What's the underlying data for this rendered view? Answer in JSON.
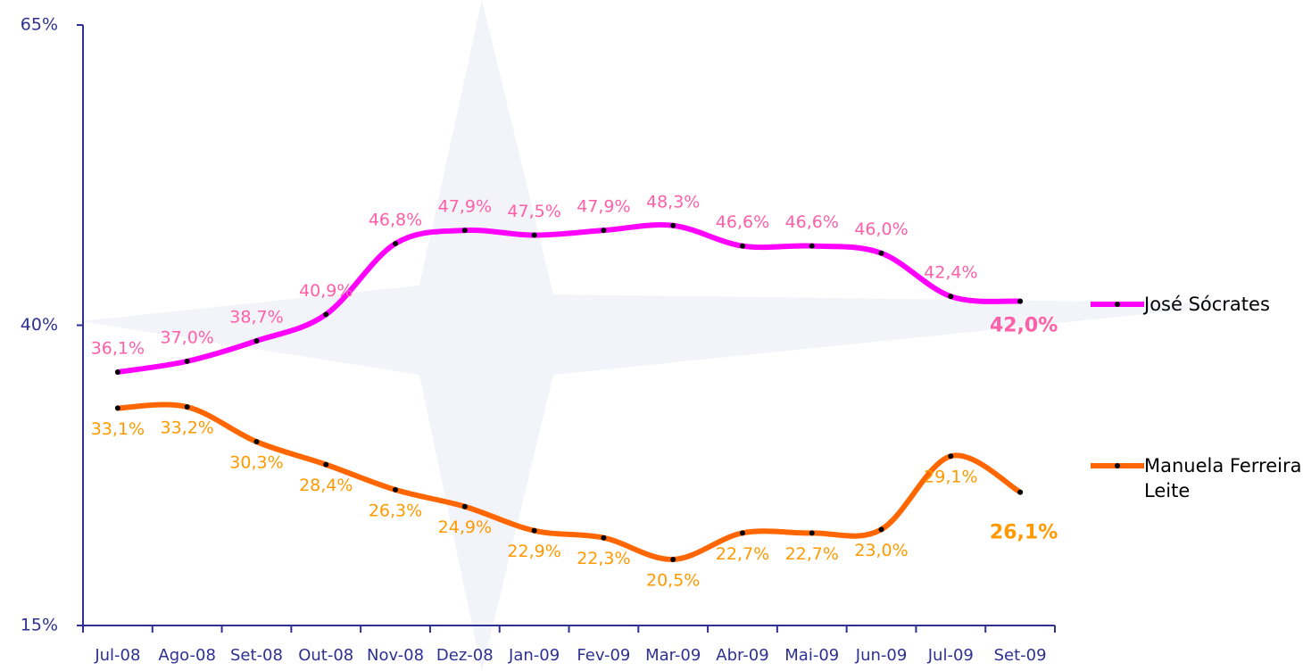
{
  "chart_data": {
    "type": "line",
    "categories": [
      "Jul-08",
      "Ago-08",
      "Set-08",
      "Out-08",
      "Nov-08",
      "Dez-08",
      "Jan-09",
      "Fev-09",
      "Mar-09",
      "Abr-09",
      "Mai-09",
      "Jun-09",
      "Jul-09",
      "Set-09"
    ],
    "series": [
      {
        "name": "José Sócrates",
        "color": "#ff00ff",
        "label_color": "#ff5fa8",
        "values": [
          36.1,
          37.0,
          38.7,
          40.9,
          46.8,
          47.9,
          47.5,
          47.9,
          48.3,
          46.6,
          46.6,
          46.0,
          42.4,
          42.0
        ],
        "value_labels": [
          "36,1%",
          "37,0%",
          "38,7%",
          "40,9%",
          "46,8%",
          "47,9%",
          "47,5%",
          "47,9%",
          "48,3%",
          "46,6%",
          "46,6%",
          "46,0%",
          "42,4%",
          "42,0%"
        ]
      },
      {
        "name": "Manuela Ferreira Leite",
        "color": "#ff6600",
        "label_color": "#ff9900",
        "values": [
          33.1,
          33.2,
          30.3,
          28.4,
          26.3,
          24.9,
          22.9,
          22.3,
          20.5,
          22.7,
          22.7,
          23.0,
          29.1,
          26.1
        ],
        "value_labels": [
          "33,1%",
          "33,2%",
          "30,3%",
          "28,4%",
          "26,3%",
          "24,9%",
          "22,9%",
          "22,3%",
          "20,5%",
          "22,7%",
          "22,7%",
          "23,0%",
          "29,1%",
          "26,1%"
        ]
      }
    ],
    "ylim": [
      15,
      65
    ],
    "yticks": [
      {
        "value": 15,
        "label": "15%"
      },
      {
        "value": 40,
        "label": "40%"
      },
      {
        "value": 65,
        "label": "65%"
      }
    ]
  }
}
